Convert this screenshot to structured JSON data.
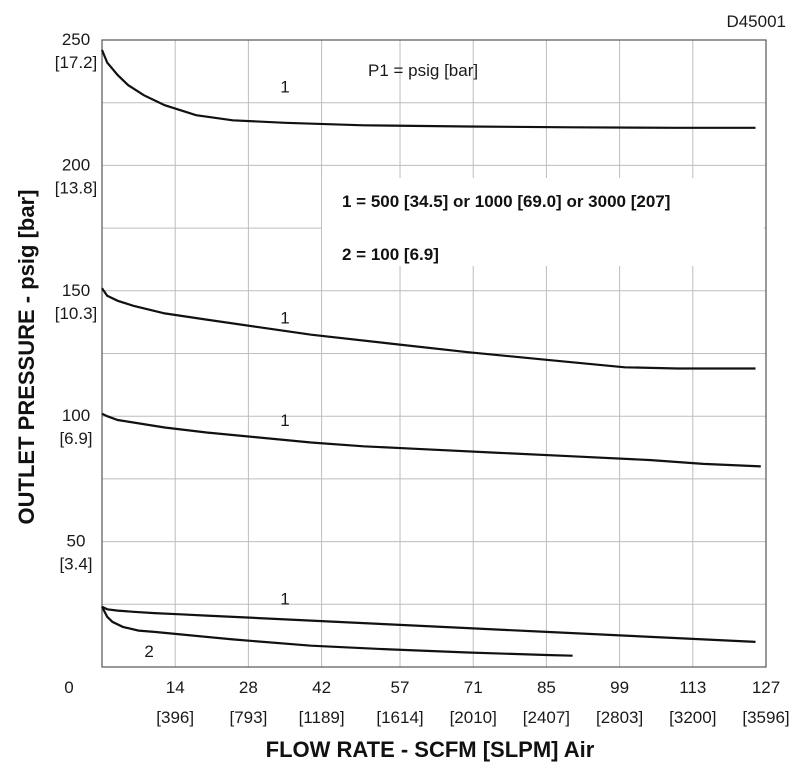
{
  "chart_data": {
    "type": "line",
    "code": "D45001",
    "annotation": "P1 = psig [bar]",
    "xlabel": "FLOW RATE - SCFM [SLPM] Air",
    "ylabel": "OUTLET PRESSURE - psig [bar]",
    "xlim": [
      0,
      127
    ],
    "ylim": [
      0,
      250
    ],
    "grid": true,
    "x_ticks": [
      {
        "value": 0,
        "label": "0",
        "sub": ""
      },
      {
        "value": 14,
        "label": "14",
        "sub": "[396]"
      },
      {
        "value": 28,
        "label": "28",
        "sub": "[793]"
      },
      {
        "value": 42,
        "label": "42",
        "sub": "[1189]"
      },
      {
        "value": 57,
        "label": "57",
        "sub": "[1614]"
      },
      {
        "value": 71,
        "label": "71",
        "sub": "[2010]"
      },
      {
        "value": 85,
        "label": "85",
        "sub": "[2407]"
      },
      {
        "value": 99,
        "label": "99",
        "sub": "[2803]"
      },
      {
        "value": 113,
        "label": "113",
        "sub": "[3200]"
      },
      {
        "value": 127,
        "label": "127",
        "sub": "[3596]"
      }
    ],
    "y_ticks": [
      {
        "value": 250,
        "label": "250",
        "sub": "[17.2]"
      },
      {
        "value": 200,
        "label": "200",
        "sub": "[13.8]"
      },
      {
        "value": 150,
        "label": "150",
        "sub": "[10.3]"
      },
      {
        "value": 100,
        "label": "100",
        "sub": "[6.9]"
      },
      {
        "value": 50,
        "label": "50",
        "sub": "[3.4]"
      }
    ],
    "legend": [
      {
        "text": "1 = 500 [34.5] or 1000 [69.0] or 3000 [207]"
      },
      {
        "text": "2 = 100 [6.9]"
      }
    ],
    "series": [
      {
        "label": "1",
        "x": [
          0,
          1,
          3,
          5,
          8,
          12,
          18,
          25,
          35,
          50,
          70,
          90,
          110,
          125
        ],
        "y": [
          246,
          241,
          236,
          232,
          228,
          224,
          220,
          218,
          217,
          216,
          215.5,
          215.2,
          215,
          215
        ]
      },
      {
        "label": "1",
        "x": [
          0,
          1,
          3,
          6,
          12,
          20,
          30,
          40,
          55,
          70,
          85,
          100,
          110,
          125
        ],
        "y": [
          151,
          148,
          146,
          144,
          141,
          138.5,
          135.5,
          132.5,
          129,
          125.5,
          122.5,
          119.5,
          119,
          119
        ]
      },
      {
        "label": "1",
        "x": [
          0,
          1,
          3,
          6,
          12,
          20,
          30,
          40,
          50,
          60,
          75,
          90,
          105,
          115,
          126
        ],
        "y": [
          101,
          100,
          98.5,
          97.5,
          95.5,
          93.5,
          91.5,
          89.5,
          88,
          87,
          85.5,
          84,
          82.5,
          81,
          80
        ]
      },
      {
        "label": "1",
        "x": [
          0,
          1,
          3,
          6,
          10,
          15,
          20,
          30,
          40,
          55,
          70,
          85,
          100,
          115,
          125
        ],
        "y": [
          24,
          23,
          22.5,
          22,
          21.5,
          21,
          20.5,
          19.5,
          18.5,
          17,
          15.5,
          14,
          12.5,
          11,
          10
        ]
      },
      {
        "label": "2",
        "x": [
          0,
          1,
          2,
          4,
          7,
          10,
          15,
          25,
          40,
          55,
          70,
          85,
          90
        ],
        "y": [
          24,
          20,
          18,
          16,
          14.5,
          14,
          13,
          11,
          8.5,
          7,
          5.8,
          4.8,
          4.5
        ]
      }
    ]
  }
}
